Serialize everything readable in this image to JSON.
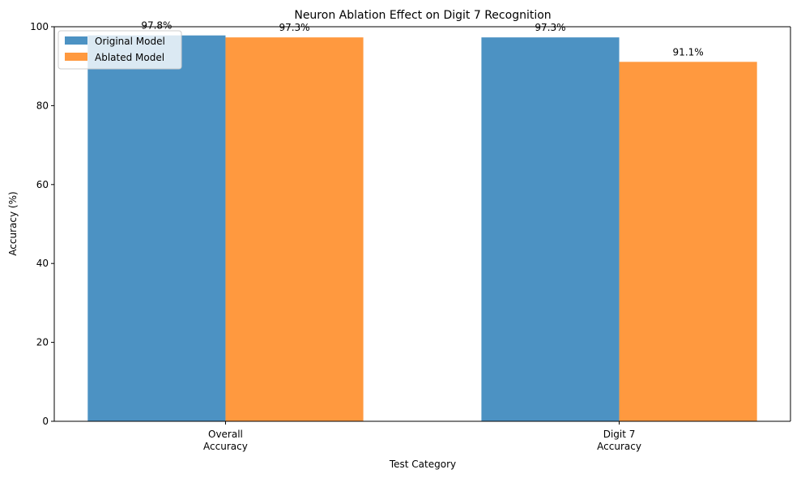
{
  "chart_data": {
    "type": "bar",
    "title": "Neuron Ablation Effect on Digit 7 Recognition",
    "xlabel": "Test Category",
    "ylabel": "Accuracy (%)",
    "categories": [
      [
        "Overall",
        "Accuracy"
      ],
      [
        "Digit 7",
        "Accuracy"
      ]
    ],
    "series": [
      {
        "name": "Original Model",
        "values": [
          97.8,
          97.3
        ],
        "labels": [
          "97.8%",
          "97.3%"
        ],
        "color": "#4c92c3"
      },
      {
        "name": "Ablated Model",
        "values": [
          97.3,
          91.1
        ],
        "labels": [
          "97.3%",
          "91.1%"
        ],
        "color": "#ff993f"
      }
    ],
    "ylim": [
      0,
      100
    ],
    "yticks": [
      0,
      20,
      40,
      60,
      80,
      100
    ],
    "legend_position": "top-left",
    "grid": false
  }
}
